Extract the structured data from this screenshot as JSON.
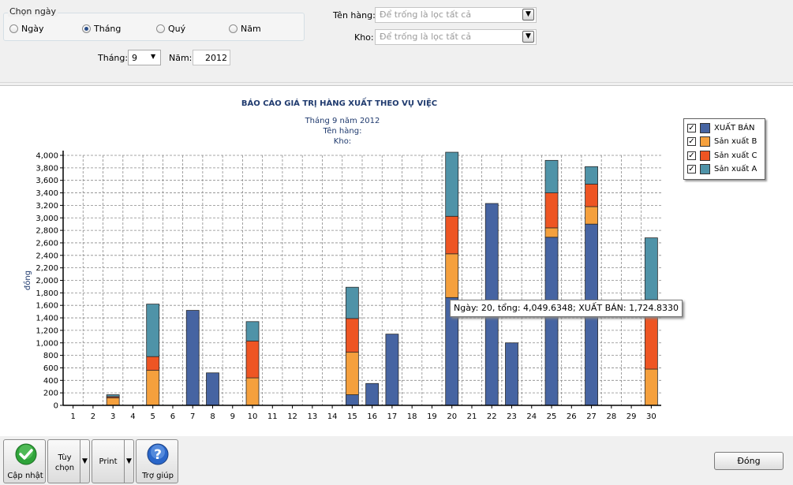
{
  "filter": {
    "group_label": "Chọn ngày",
    "radios": [
      {
        "label": "Ngày",
        "selected": false
      },
      {
        "label": "Tháng",
        "selected": true
      },
      {
        "label": "Quý",
        "selected": false
      },
      {
        "label": "Năm",
        "selected": false
      }
    ],
    "month_label": "Tháng:",
    "month_value": "9",
    "year_label": "Năm:",
    "year_value": "2012",
    "product_label": "Tên hàng:",
    "product_placeholder": "Để trống là lọc tất cả",
    "warehouse_label": "Kho:",
    "warehouse_placeholder": "Để trống là lọc tất cả"
  },
  "chart_data": {
    "type": "bar",
    "stacked": true,
    "title": "BÁO CÁO GIÁ TRỊ HÀNG XUẤT THEO VỤ VIỆC",
    "subtitle_lines": [
      "Tháng 9 năm 2012",
      "Tên hàng:",
      "Kho:"
    ],
    "ylabel": "đồng",
    "xlabel": "",
    "ylim": [
      0,
      4000
    ],
    "yticks": [
      "0",
      "200",
      "400",
      "600",
      "800",
      "1,000",
      "1,200",
      "1,400",
      "1,600",
      "1,800",
      "2,000",
      "2,200",
      "2,400",
      "2,600",
      "2,800",
      "3,000",
      "3,200",
      "3,400",
      "3,600",
      "3,800",
      "4,000"
    ],
    "grid": true,
    "legend_position": "top-right",
    "categories": [
      "1",
      "2",
      "3",
      "4",
      "5",
      "6",
      "7",
      "8",
      "9",
      "10",
      "11",
      "12",
      "13",
      "14",
      "15",
      "16",
      "17",
      "18",
      "19",
      "20",
      "21",
      "22",
      "23",
      "24",
      "25",
      "26",
      "27",
      "28",
      "29",
      "30"
    ],
    "series": [
      {
        "name": "XUẤT BÁN",
        "color": "#4664a2",
        "values": [
          0,
          0,
          0,
          0,
          0,
          0,
          1520,
          520,
          0,
          0,
          0,
          0,
          0,
          0,
          170,
          350,
          1140,
          0,
          0,
          1725,
          0,
          3230,
          1000,
          0,
          2690,
          0,
          2900,
          0,
          0,
          0
        ]
      },
      {
        "name": "Sản xuất B",
        "color": "#f5a03d",
        "values": [
          0,
          0,
          120,
          0,
          560,
          0,
          0,
          0,
          0,
          440,
          0,
          0,
          0,
          0,
          680,
          0,
          0,
          0,
          0,
          700,
          0,
          0,
          0,
          0,
          150,
          0,
          280,
          0,
          0,
          580
        ]
      },
      {
        "name": "Sản xuất C",
        "color": "#ee5523",
        "values": [
          0,
          0,
          20,
          0,
          220,
          0,
          0,
          0,
          0,
          590,
          0,
          0,
          0,
          0,
          540,
          0,
          0,
          0,
          0,
          600,
          0,
          0,
          0,
          0,
          560,
          0,
          360,
          0,
          0,
          1110
        ]
      },
      {
        "name": "Sản xuất A",
        "color": "#4f93a8",
        "values": [
          0,
          0,
          30,
          0,
          840,
          0,
          0,
          0,
          0,
          310,
          0,
          0,
          0,
          0,
          500,
          0,
          0,
          0,
          0,
          1025,
          0,
          0,
          0,
          0,
          520,
          0,
          280,
          0,
          0,
          990
        ]
      }
    ],
    "tooltip": "Ngày: 20, tổng: 4,049.6348; XUẤT BÁN: 1,724.8330"
  },
  "toolbar": {
    "update_label": "Cập nhật",
    "options_label_1": "Tùy",
    "options_label_2": "chọn",
    "print_label": "Print",
    "help_label": "Trợ giúp",
    "close_label": "Đóng"
  },
  "colors": {
    "accent": "#1f3a6e",
    "grid": "#8a8a8a"
  }
}
